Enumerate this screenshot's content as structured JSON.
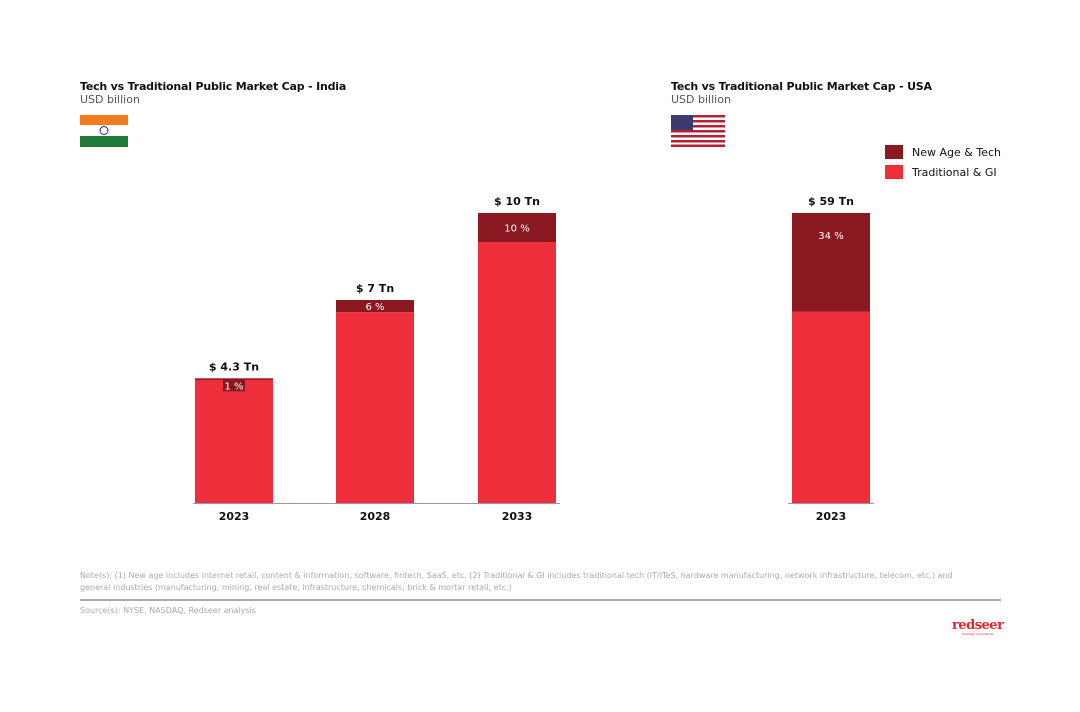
{
  "colors": {
    "new_age": "#8a1820",
    "traditional": "#ee2e3b"
  },
  "legend": {
    "new_age_label": "New Age & Tech",
    "traditional_label": "Traditional & GI"
  },
  "chart_data": [
    {
      "type": "bar",
      "stacked": true,
      "title": "Tech vs Traditional Public Market Cap - India",
      "subtitle": "USD billion",
      "flag-icon": "india-flag",
      "categories": [
        "2023",
        "2028",
        "2033"
      ],
      "totals_tn": [
        4.3,
        7,
        10
      ],
      "total_labels": [
        "$ 4.3 Tn",
        "$ 7 Tn",
        "$ 10 Tn"
      ],
      "new_age_share_pct": [
        1,
        6,
        10
      ],
      "share_labels": [
        "1 %",
        "6 %",
        "10 %"
      ],
      "series": [
        {
          "name": "New Age & Tech",
          "share_pct": [
            1,
            6,
            10
          ]
        },
        {
          "name": "Traditional & GI",
          "share_pct": [
            99,
            94,
            90
          ]
        }
      ]
    },
    {
      "type": "bar",
      "stacked": true,
      "title": "Tech vs Traditional Public Market Cap - USA",
      "subtitle": "USD billion",
      "flag-icon": "usa-flag",
      "categories": [
        "2023"
      ],
      "totals_tn": [
        59
      ],
      "total_labels": [
        "$ 59 Tn"
      ],
      "new_age_share_pct": [
        34
      ],
      "share_labels": [
        "34 %"
      ],
      "series": [
        {
          "name": "New Age & Tech",
          "share_pct": [
            34
          ]
        },
        {
          "name": "Traditional & GI",
          "share_pct": [
            66
          ]
        }
      ]
    }
  ],
  "footer": {
    "notes": "Note(s): (1) New age includes internet retail, content & information, software, fintech, SaaS, etc. (2) Traditional & GI includes traditional tech (IT/ITeS, hardware manufacturing, network infrastructure, telecom, etc.) and general industries (manufacturing, mining, real estate, infrastructure, chemicals, brick & mortar retail, etc.)",
    "source": "Source(s): NYSE, NASDAQ, Redseer analysis",
    "logo_text": "redseer",
    "logo_tagline": "Strategy Consultants"
  }
}
